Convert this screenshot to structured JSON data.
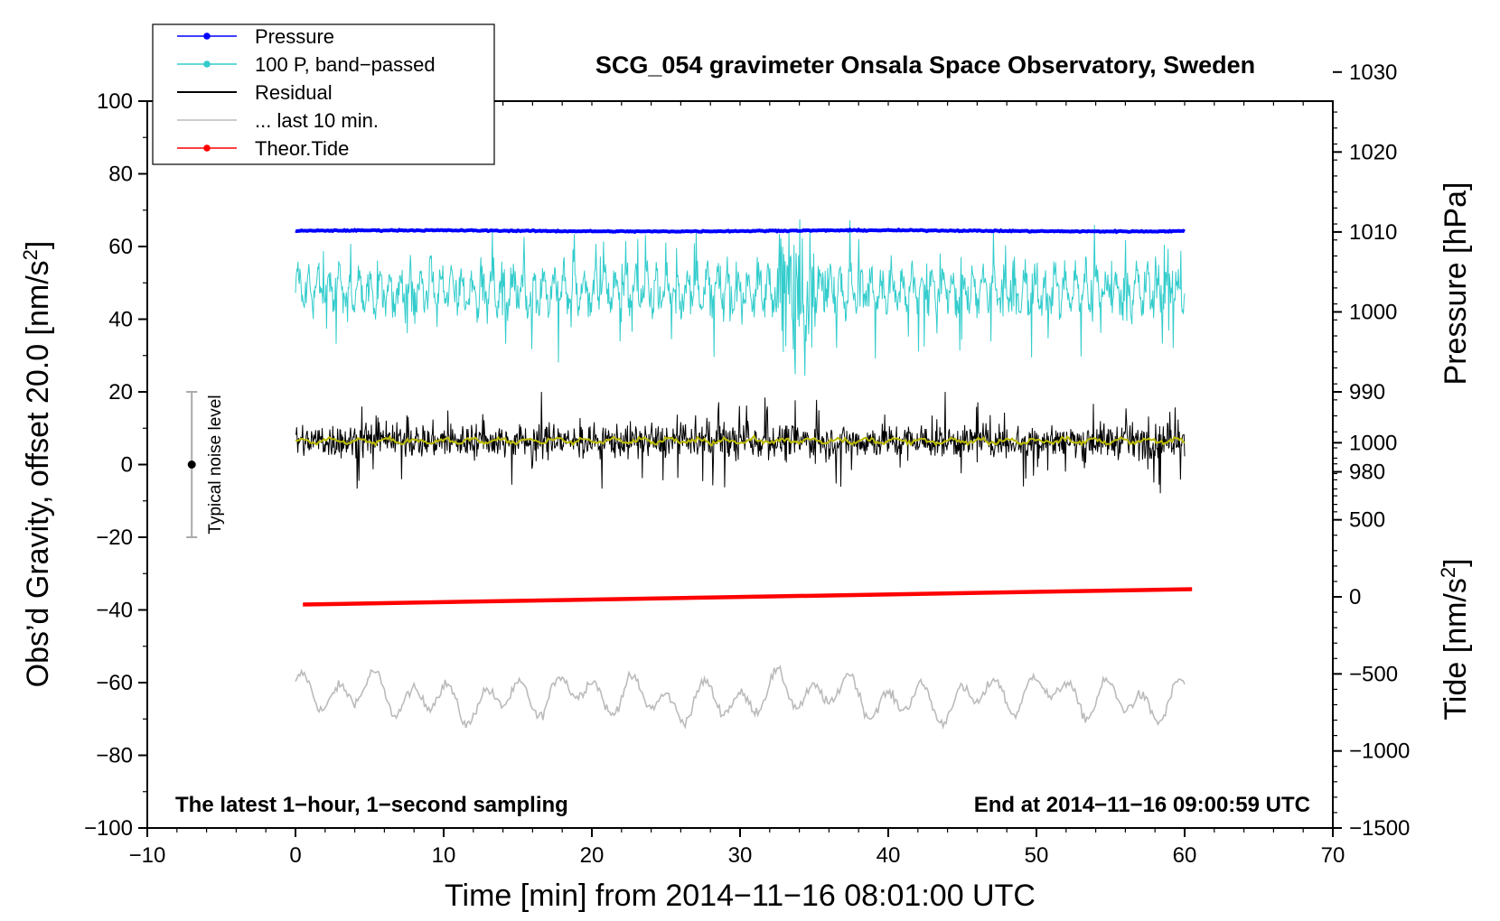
{
  "chart_data": {
    "type": "line",
    "title": "SCG_054 gravimeter Onsala Space Observatory, Sweden",
    "xlabel": "Time [min] from 2014−11−16 08:01:00 UTC",
    "ylabel_left_prefix": "Obs’d Gravity, offset 20.0 [nm/s",
    "ylabel_left_sup": "2",
    "ylabel_left_suffix": "]",
    "ylabel_pressure": "Pressure [hPa]",
    "ylabel_tide_prefix": "Tide [nm/s",
    "ylabel_tide_sup": "2",
    "ylabel_tide_suffix": "]",
    "note_left": "The latest 1−hour, 1−second sampling",
    "note_right": "End at 2014−11−16 09:00:59 UTC",
    "noise_label": "Typical noise level",
    "noise_level": {
      "x": -7,
      "center": 0,
      "low": -20,
      "high": 20
    },
    "xlim": [
      -10,
      70
    ],
    "ylim": [
      -100,
      100
    ],
    "x_ticks": [
      "−10",
      "0",
      "10",
      "20",
      "30",
      "40",
      "50",
      "60",
      "70"
    ],
    "x_tick_values": [
      -10,
      0,
      10,
      20,
      30,
      40,
      50,
      60,
      70
    ],
    "y_ticks": [
      "100",
      "80",
      "60",
      "40",
      "20",
      "0",
      "−20",
      "−40",
      "−60",
      "−80",
      "−100"
    ],
    "y_tick_values": [
      100,
      80,
      60,
      40,
      20,
      0,
      -20,
      -40,
      -60,
      -80,
      -100
    ],
    "pressure_axis": {
      "ticks": [
        "1030",
        "1020",
        "1010",
        "1000",
        "990",
        "980"
      ],
      "values": [
        1030,
        1020,
        1010,
        1000,
        990,
        980
      ],
      "gravity_equivalent_per_hpa": 2.2,
      "ref_hpa": 1010,
      "ref_gravity": 64
    },
    "tide_axis": {
      "ticks": [
        "1000",
        "500",
        "0",
        "−500",
        "−1000",
        "−1500"
      ],
      "values": [
        1000,
        500,
        0,
        -500,
        -1000,
        -1500
      ],
      "range": [
        -1500,
        1000
      ]
    },
    "legend": {
      "placement": "top-left",
      "entries": [
        {
          "label": "Pressure",
          "color": "#0000ff",
          "marker": true
        },
        {
          "label": "100 P, band−passed",
          "color": "#33cccc",
          "marker": true
        },
        {
          "label": "Residual",
          "color": "#000000",
          "marker": false
        },
        {
          "label": "... last 10 min.",
          "color": "#bbbbbb",
          "marker": false
        },
        {
          "label": "Theor.Tide",
          "color": "#ff0000",
          "marker": true
        }
      ]
    },
    "series": [
      {
        "name": "Pressure",
        "color": "#0000ff",
        "x_range": [
          0,
          60
        ],
        "approx_hpa": 1010,
        "approx_gravity_level": 64.3
      },
      {
        "name": "100 P, band−passed",
        "color": "#33cccc",
        "x_range": [
          0,
          60
        ],
        "mean": 48,
        "range": [
          24,
          71
        ]
      },
      {
        "name": "Residual",
        "color": "#000000",
        "x_range": [
          0,
          60
        ],
        "mean": 6.5,
        "range": [
          -8,
          20
        ]
      },
      {
        "name": "Residual (smoothed)",
        "color": "#bbbb00",
        "x_range": [
          0,
          60
        ],
        "mean": 6.5
      },
      {
        "name": "... last 10 min.",
        "color": "#bbbbbb",
        "x_range": [
          0,
          60
        ],
        "mean": -64,
        "range": [
          -72,
          -52
        ]
      },
      {
        "name": "Theor.Tide",
        "color": "#ff0000",
        "x_range": [
          0.5,
          60.5
        ],
        "tide_values": [
          -50,
          50
        ]
      }
    ],
    "colors": {
      "pressure": "#0000ff",
      "bandpassed": "#33cccc",
      "residual": "#000000",
      "smoothed": "#bbbb00",
      "last10": "#bbbbbb",
      "tide": "#ff0000",
      "noise_bar": "#aaaaaa"
    }
  }
}
